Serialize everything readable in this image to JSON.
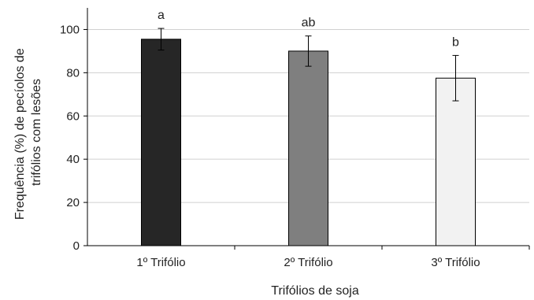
{
  "chart_data": {
    "type": "bar",
    "categories": [
      "1º Trifólio",
      "2º Trifólio",
      "3º Trifólio"
    ],
    "values": [
      95.5,
      90,
      77.5
    ],
    "error": [
      5,
      7,
      10.5
    ],
    "significance": [
      "a",
      "ab",
      "b"
    ],
    "colors": [
      "#262626",
      "#7f7f7f",
      "#f2f2f2"
    ],
    "xlabel": "Trifólios de soja",
    "ylabel_lines": [
      "Frequência (%) de pecíolos de",
      "trifólios com lesões"
    ],
    "ylim": [
      0,
      110
    ],
    "yticks": [
      0,
      20,
      40,
      60,
      80,
      100
    ],
    "grid": true,
    "legend": "none"
  }
}
